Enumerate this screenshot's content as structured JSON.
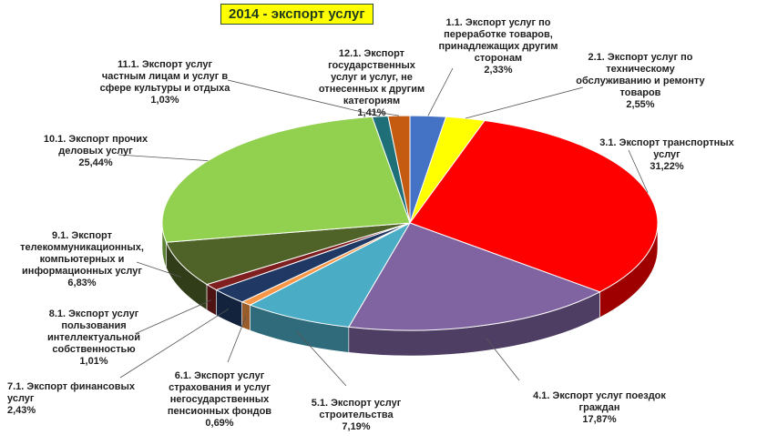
{
  "chart_data": {
    "type": "pie",
    "title": "2014 - экспорт услуг",
    "slices": [
      {
        "label": "1.1. Экспорт услуг по переработке товаров, принадлежащих другим сторонам",
        "value_text": "2,33%",
        "value": 2.33,
        "color": "#4472c4"
      },
      {
        "label": "2.1. Экспорт услуг по техническому обслуживанию и ремонту товаров",
        "value_text": "2,55%",
        "value": 2.55,
        "color": "#ffff00"
      },
      {
        "label": "3.1. Экспорт транспортных услуг",
        "value_text": "31,22%",
        "value": 31.22,
        "color": "#ff0000"
      },
      {
        "label": "4.1. Экспорт услуг поездок граждан",
        "value_text": "17,87%",
        "value": 17.87,
        "color": "#8064a2"
      },
      {
        "label": "5.1. Экспорт услуг строительства",
        "value_text": "7,19%",
        "value": 7.19,
        "color": "#4bacc6"
      },
      {
        "label": "6.1. Экспорт услуг страхования и услуг негосударственных пенсионных фондов",
        "value_text": "0,69%",
        "value": 0.69,
        "color": "#f79646"
      },
      {
        "label": "7.1. Экспорт финансовых услуг",
        "value_text": "2,43%",
        "value": 2.43,
        "color": "#1f3864"
      },
      {
        "label": "8.1. Экспорт услуг пользования интеллектуальной собственностью",
        "value_text": "1,01%",
        "value": 1.01,
        "color": "#7f1f1f"
      },
      {
        "label": "9.1. Экспорт телекоммуникационных, компьютерных и информационных услуг",
        "value_text": "6,83%",
        "value": 6.83,
        "color": "#4f6228"
      },
      {
        "label": "10.1. Экспорт прочих деловых услуг",
        "value_text": "25,44%",
        "value": 25.44,
        "color": "#92d050"
      },
      {
        "label": "11.1. Экспорт услуг частным лицам и услуг в сфере культуры и отдыха",
        "value_text": "1,03%",
        "value": 1.03,
        "color": "#1f6f78"
      },
      {
        "label": "12.1. Экспорт государственных услуг и услуг, не отнесенных к другим категориям",
        "value_text": "1,41%",
        "value": 1.41,
        "color": "#c55a11"
      }
    ]
  },
  "labels": {
    "s1": {
      "text": "1.1. Экспорт услуг по\nпереработке товаров,\nпринадлежащих другим\nсторонам"
    },
    "s2": {
      "text": "2.1. Экспорт услуг по\nтехническому\nобслуживанию и ремонту\nтоваров"
    },
    "s3": {
      "text": "3.1. Экспорт транспортных\nуслуг"
    },
    "s4": {
      "text": "4.1. Экспорт услуг поездок\nграждан"
    },
    "s5": {
      "text": "5.1. Экспорт услуг\nстроительства"
    },
    "s6": {
      "text": "6.1. Экспорт услуг\nстрахования и услуг\nнегосударственных\nпенсионных фондов"
    },
    "s7": {
      "text": "7.1. Экспорт финансовых\nуслуг"
    },
    "s8": {
      "text": "8.1. Экспорт услуг\nпользования\nинтеллектуальной\nсобственностью"
    },
    "s9": {
      "text": "9.1. Экспорт\nтелекоммуникационных,\nкомпьютерных и\nинформационных услуг"
    },
    "s10": {
      "text": "10.1. Экспорт прочих\nделовых услуг"
    },
    "s11": {
      "text": "11.1. Экспорт услуг\nчастным лицам и услуг в\nсфере культуры и отдыха"
    },
    "s12": {
      "text": "12.1. Экспорт\nгосударственных\nуслуг и услуг, не\nотнесенных к другим\nкатегориям"
    }
  }
}
